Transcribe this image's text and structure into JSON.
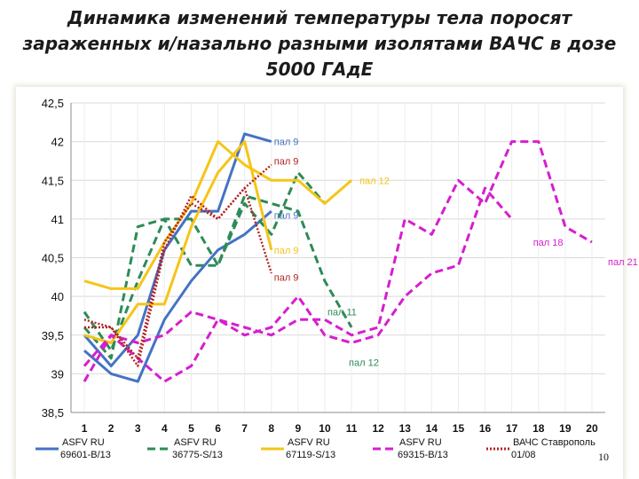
{
  "title_lines": [
    "Динамика изменений температуры тела поросят",
    "зараженных и/назально разными изолятами ВАЧС в дозе",
    "5000 ГАдЕ"
  ],
  "page_number": "10",
  "chart_data": {
    "type": "line",
    "title": "Динамика изменений температуры тела поросят зараженных и/назально разными изолятами ВАЧС в дозе 5000 ГАдЕ",
    "ylim": [
      38.5,
      42.5
    ],
    "yticks": [
      "38,5",
      "39",
      "39,5",
      "40",
      "40,5",
      "41",
      "41,5",
      "42",
      "42,5"
    ],
    "ytick_values": [
      38.5,
      39,
      39.5,
      40,
      40.5,
      41,
      41.5,
      42,
      42.5
    ],
    "xlim": [
      0.5,
      20.5
    ],
    "xticks": [
      "1",
      "2",
      "3",
      "4",
      "5",
      "6",
      "7",
      "8",
      "9",
      "10",
      "11",
      "12",
      "13",
      "14",
      "15",
      "16",
      "17",
      "18",
      "19",
      "20"
    ],
    "grid": true,
    "legend": "bottom",
    "series": [
      {
        "name": "ASFV RU 69601-B/13",
        "legend_lines": [
          "ASFV RU",
          "69601-B/13"
        ],
        "color": "#4472c4",
        "style": "solid",
        "lines": [
          [
            [
              1,
              39.3
            ],
            [
              2,
              39.0
            ],
            [
              3,
              38.9
            ],
            [
              4,
              39.7
            ],
            [
              5,
              40.2
            ],
            [
              6,
              40.6
            ],
            [
              7,
              40.8
            ],
            [
              8,
              41.1
            ]
          ],
          [
            [
              1,
              39.5
            ],
            [
              2,
              39.1
            ],
            [
              3,
              39.5
            ],
            [
              4,
              40.6
            ],
            [
              5,
              41.1
            ],
            [
              6,
              41.1
            ],
            [
              7,
              42.1
            ],
            [
              8,
              42.0
            ]
          ]
        ],
        "annotations": [
          {
            "text": "пал 9",
            "x": 8.1,
            "y": 42.0
          },
          {
            "text": "пал 9",
            "x": 8.1,
            "y": 41.05
          }
        ]
      },
      {
        "name": "ASFV RU 36775-S/13",
        "legend_lines": [
          "ASFV RU",
          "36775-S/13"
        ],
        "color": "#2e8b57",
        "style": "dashed",
        "lines": [
          [
            [
              1,
              39.8
            ],
            [
              2,
              39.3
            ],
            [
              3,
              40.2
            ],
            [
              4,
              41.0
            ],
            [
              5,
              41.0
            ],
            [
              6,
              40.4
            ],
            [
              7,
              41.3
            ],
            [
              8,
              41.2
            ],
            [
              9,
              41.1
            ],
            [
              10,
              40.2
            ],
            [
              11,
              39.6
            ]
          ],
          [
            [
              1,
              39.6
            ],
            [
              2,
              39.2
            ],
            [
              3,
              40.9
            ],
            [
              4,
              41.0
            ],
            [
              5,
              40.4
            ],
            [
              6,
              40.4
            ],
            [
              7,
              41.2
            ],
            [
              8,
              40.8
            ],
            [
              9,
              41.6
            ],
            [
              10,
              41.2
            ]
          ]
        ],
        "annotations": [
          {
            "text": "пал 11",
            "x": 10.1,
            "y": 39.8
          },
          {
            "text": "пал 12",
            "x": 10.9,
            "y": 39.15
          }
        ]
      },
      {
        "name": "ASFV RU 67119-S/13",
        "legend_lines": [
          "ASFV RU",
          "67119-S/13"
        ],
        "color": "#f5c518",
        "style": "solid",
        "lines": [
          [
            [
              1,
              40.2
            ],
            [
              2,
              40.1
            ],
            [
              3,
              40.1
            ],
            [
              4,
              40.7
            ],
            [
              5,
              41.2
            ],
            [
              6,
              42.0
            ],
            [
              7,
              41.7
            ],
            [
              8,
              41.5
            ],
            [
              9,
              41.5
            ],
            [
              10,
              41.2
            ],
            [
              11,
              41.5
            ]
          ],
          [
            [
              1,
              39.5
            ],
            [
              2,
              39.4
            ],
            [
              3,
              39.9
            ],
            [
              4,
              39.9
            ],
            [
              5,
              40.9
            ],
            [
              6,
              41.6
            ],
            [
              7,
              42.0
            ],
            [
              8,
              40.6
            ]
          ]
        ],
        "annotations": [
          {
            "text": "пал 12",
            "x": 11.3,
            "y": 41.5
          },
          {
            "text": "пал 9",
            "x": 8.1,
            "y": 40.6
          }
        ]
      },
      {
        "name": "ASFV RU 69315-B/13",
        "legend_lines": [
          "ASFV RU",
          "69315-B/13"
        ],
        "color": "#d61ecf",
        "style": "dashed",
        "lines": [
          [
            [
              1,
              38.9
            ],
            [
              2,
              39.5
            ],
            [
              3,
              39.4
            ],
            [
              4,
              39.5
            ],
            [
              5,
              39.8
            ],
            [
              6,
              39.7
            ],
            [
              7,
              39.6
            ],
            [
              8,
              39.5
            ],
            [
              9,
              39.7
            ],
            [
              10,
              39.7
            ],
            [
              11,
              39.5
            ],
            [
              12,
              39.6
            ],
            [
              13,
              41.0
            ],
            [
              14,
              40.8
            ],
            [
              15,
              41.5
            ],
            [
              16,
              41.2
            ],
            [
              17,
              42.0
            ],
            [
              18,
              42.0
            ],
            [
              19,
              40.9
            ],
            [
              20,
              40.7
            ]
          ],
          [
            [
              1,
              39.1
            ],
            [
              2,
              39.5
            ],
            [
              3,
              39.2
            ],
            [
              4,
              38.9
            ],
            [
              5,
              39.1
            ],
            [
              6,
              39.7
            ],
            [
              7,
              39.5
            ],
            [
              8,
              39.6
            ],
            [
              9,
              40.0
            ],
            [
              10,
              39.5
            ],
            [
              11,
              39.4
            ],
            [
              12,
              39.5
            ],
            [
              13,
              40.0
            ],
            [
              14,
              40.3
            ],
            [
              15,
              40.4
            ],
            [
              16,
              41.4
            ],
            [
              17,
              41.0
            ]
          ]
        ],
        "annotations": [
          {
            "text": "пал 18",
            "x": 17.8,
            "y": 40.7
          },
          {
            "text": "пал 21",
            "x": 20.6,
            "y": 40.45
          }
        ]
      },
      {
        "name": "ВАЧС Ставрополь 01/08",
        "legend_lines": [
          "ВАЧС Ставрополь",
          "01/08"
        ],
        "color": "#b22222",
        "style": "dotted",
        "lines": [
          [
            [
              1,
              39.7
            ],
            [
              2,
              39.6
            ],
            [
              3,
              39.1
            ],
            [
              4,
              40.6
            ],
            [
              5,
              41.3
            ],
            [
              6,
              41.0
            ],
            [
              7,
              41.4
            ],
            [
              8,
              41.7
            ]
          ],
          [
            [
              1,
              39.6
            ],
            [
              2,
              39.6
            ],
            [
              3,
              39.2
            ],
            [
              4,
              40.7
            ],
            [
              5,
              41.2
            ],
            [
              6,
              41.0
            ],
            [
              7,
              41.4
            ],
            [
              8,
              40.3
            ]
          ]
        ],
        "annotations": [
          {
            "text": "пал 9",
            "x": 8.1,
            "y": 41.75
          },
          {
            "text": "пал 9",
            "x": 8.1,
            "y": 40.25
          }
        ]
      }
    ]
  }
}
